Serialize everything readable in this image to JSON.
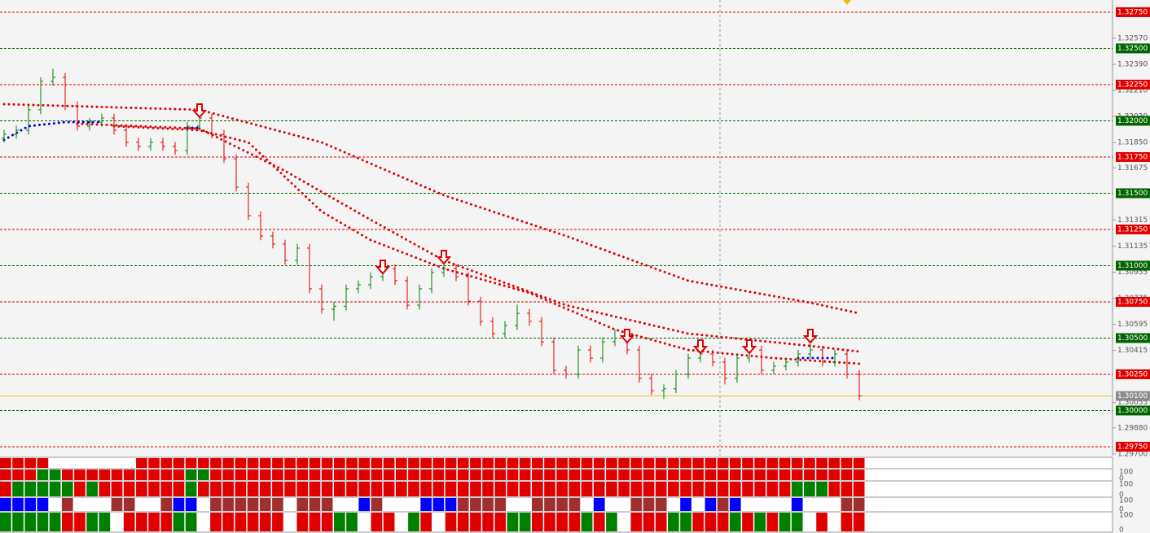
{
  "chart_data": {
    "type": "candlestick",
    "ylim": [
      1.29688,
      1.32834
    ],
    "up_color": "#008000",
    "down_color": "#e00000",
    "open": [
      1.3188,
      1.31907,
      1.31935,
      1.32076,
      1.32272,
      1.323,
      1.32104,
      1.31963,
      1.31991,
      1.32019,
      1.31935,
      1.31851,
      1.31823,
      1.31851,
      1.31823,
      1.31795,
      1.31963,
      1.32019,
      1.31907,
      1.31738,
      1.31542,
      1.31345,
      1.31205,
      1.31149,
      1.31036,
      1.31121,
      1.3084,
      1.30699,
      1.3072,
      1.3084,
      1.30868,
      1.30924,
      1.3098,
      1.30896,
      1.30727,
      1.3084,
      1.30952,
      1.3098,
      1.30924,
      1.30755,
      1.30615,
      1.30531,
      1.30587,
      1.30671,
      1.30615,
      1.30474,
      1.30278,
      1.3025,
      1.30418,
      1.30362,
      1.30474,
      1.305,
      1.30418,
      1.30222,
      1.30137,
      1.3015,
      1.3025,
      1.30362,
      1.3039,
      1.30334,
      1.30222,
      1.30362,
      1.30418,
      1.30278,
      1.30306,
      1.30334,
      1.3039,
      1.30418,
      1.30334,
      1.3039,
      1.3025
    ],
    "high": [
      1.31937,
      1.31965,
      1.32106,
      1.32302,
      1.3236,
      1.3233,
      1.32134,
      1.32021,
      1.32049,
      1.32049,
      1.31965,
      1.31881,
      1.31881,
      1.31881,
      1.31853,
      1.31993,
      1.32049,
      1.32049,
      1.31937,
      1.31768,
      1.31572,
      1.31375,
      1.31235,
      1.31179,
      1.31151,
      1.31151,
      1.3087,
      1.3075,
      1.3087,
      1.30898,
      1.30954,
      1.3101,
      1.3101,
      1.30926,
      1.3087,
      1.30982,
      1.3104,
      1.3101,
      1.30954,
      1.30785,
      1.30645,
      1.30617,
      1.30731,
      1.30701,
      1.30645,
      1.30504,
      1.30308,
      1.30448,
      1.30448,
      1.30504,
      1.3056,
      1.3053,
      1.30448,
      1.30252,
      1.3018,
      1.3028,
      1.30392,
      1.3045,
      1.3042,
      1.30364,
      1.30392,
      1.30448,
      1.30448,
      1.30336,
      1.30364,
      1.3042,
      1.3046,
      1.30448,
      1.3042,
      1.3042,
      1.3028
    ],
    "low": [
      1.3185,
      1.31877,
      1.31905,
      1.32046,
      1.32242,
      1.32074,
      1.31933,
      1.31933,
      1.31961,
      1.31905,
      1.31821,
      1.31793,
      1.31793,
      1.31793,
      1.31765,
      1.31765,
      1.31933,
      1.31877,
      1.31708,
      1.31512,
      1.31315,
      1.31175,
      1.31119,
      1.31006,
      1.31006,
      1.3081,
      1.30669,
      1.3062,
      1.3069,
      1.3081,
      1.30838,
      1.30894,
      1.30866,
      1.30697,
      1.30697,
      1.3081,
      1.30922,
      1.30894,
      1.30725,
      1.30585,
      1.30501,
      1.30501,
      1.30557,
      1.30585,
      1.30444,
      1.30248,
      1.3022,
      1.3022,
      1.30332,
      1.30332,
      1.30444,
      1.30388,
      1.30192,
      1.30107,
      1.3008,
      1.3012,
      1.3022,
      1.30332,
      1.30304,
      1.3018,
      1.30192,
      1.30332,
      1.30248,
      1.30248,
      1.30276,
      1.30304,
      1.3036,
      1.30304,
      1.30304,
      1.3022,
      1.3007
    ],
    "close": [
      1.31907,
      1.31935,
      1.32076,
      1.32272,
      1.323,
      1.32104,
      1.31963,
      1.31991,
      1.32019,
      1.31935,
      1.31851,
      1.31823,
      1.31851,
      1.31823,
      1.31795,
      1.31963,
      1.32019,
      1.31907,
      1.31738,
      1.31542,
      1.31345,
      1.31205,
      1.31149,
      1.31036,
      1.31121,
      1.3084,
      1.30699,
      1.3072,
      1.3084,
      1.30868,
      1.30924,
      1.3098,
      1.30896,
      1.30727,
      1.3084,
      1.30952,
      1.3098,
      1.30924,
      1.30755,
      1.30615,
      1.30531,
      1.30587,
      1.30671,
      1.30615,
      1.30474,
      1.30278,
      1.3025,
      1.30418,
      1.30362,
      1.30474,
      1.305,
      1.30418,
      1.30222,
      1.30137,
      1.3015,
      1.3025,
      1.30362,
      1.3039,
      1.30334,
      1.30222,
      1.30362,
      1.30418,
      1.30278,
      1.30306,
      1.30334,
      1.3039,
      1.30418,
      1.30334,
      1.3039,
      1.3025,
      1.301
    ],
    "series": [
      {
        "color": "#e00000",
        "x": [
          0,
          16,
          26,
          36,
          46,
          56,
          66,
          70
        ],
        "values": [
          1.32115,
          1.32076,
          1.31851,
          1.31486,
          1.31205,
          1.30896,
          1.30744,
          1.30671
        ]
      },
      {
        "color": "#e00000",
        "x": [
          6,
          16,
          23,
          30,
          36,
          46,
          56,
          66,
          70
        ],
        "values": [
          1.3198,
          1.31946,
          1.31654,
          1.31317,
          1.31036,
          1.30727,
          1.30531,
          1.30446,
          1.30407
        ]
      },
      {
        "color": "#e00000",
        "x": [
          9,
          16,
          20,
          26,
          30,
          36,
          43,
          50,
          56,
          63,
          70
        ],
        "values": [
          1.31963,
          1.31935,
          1.31851,
          1.31373,
          1.31177,
          1.3098,
          1.30812,
          1.30559,
          1.30418,
          1.30362,
          1.30323
        ]
      },
      {
        "color": "#0000e0",
        "x": [
          0,
          2,
          5,
          8,
          9,
          15,
          16,
          17,
          65,
          68
        ],
        "values": [
          1.31868,
          1.31963,
          1.31991,
          1.31991,
          null,
          1.31952,
          1.31952,
          null,
          1.30362,
          1.30362
        ]
      }
    ],
    "signals": {
      "color": "#e00000",
      "x": [
        16,
        31,
        36,
        51,
        57,
        61,
        66
      ],
      "values": [
        1.32115,
        1.31036,
        1.31104,
        1.30559,
        1.30486,
        1.30486,
        1.30559
      ]
    },
    "levels": [
      {
        "value": 1.3275,
        "label": "1.32750",
        "color": "#e00000"
      },
      {
        "value": 1.325,
        "label": "1.32500",
        "color": "#006400"
      },
      {
        "value": 1.3225,
        "label": "1.32250",
        "color": "#e00000"
      },
      {
        "value": 1.32,
        "label": "1.32000",
        "color": "#006400"
      },
      {
        "value": 1.3175,
        "label": "1.31750",
        "color": "#e00000"
      },
      {
        "value": 1.315,
        "label": "1.31500",
        "color": "#006400"
      },
      {
        "value": 1.3125,
        "label": "1.31250",
        "color": "#e00000"
      },
      {
        "value": 1.31,
        "label": "1.31000",
        "color": "#006400"
      },
      {
        "value": 1.3075,
        "label": "1.30750",
        "color": "#e00000"
      },
      {
        "value": 1.305,
        "label": "1.30500",
        "color": "#006400"
      },
      {
        "value": 1.3025,
        "label": "1.30250",
        "color": "#e00000"
      },
      {
        "value": 1.3,
        "label": "1.30000",
        "color": "#006400"
      },
      {
        "value": 1.2975,
        "label": "1.29750",
        "color": "#e00000"
      }
    ],
    "yticks": [
      {
        "value": 1.3257,
        "label": "1.32570"
      },
      {
        "value": 1.3239,
        "label": "1.32390"
      },
      {
        "value": 1.3221,
        "label": "1.32210"
      },
      {
        "value": 1.3203,
        "label": "1.32030"
      },
      {
        "value": 1.3185,
        "label": "1.31850"
      },
      {
        "value": 1.31675,
        "label": "1.31675"
      },
      {
        "value": 1.31315,
        "label": "1.31315"
      },
      {
        "value": 1.31135,
        "label": "1.31135"
      },
      {
        "value": 1.30955,
        "label": "1.30955"
      },
      {
        "value": 1.30775,
        "label": "1.30775"
      },
      {
        "value": 1.30595,
        "label": "1.30595"
      },
      {
        "value": 1.30415,
        "label": "1.30415"
      },
      {
        "value": 1.30055,
        "label": "1.30055"
      },
      {
        "value": 1.2988,
        "label": "1.29880"
      },
      {
        "value": 1.297,
        "label": "1.29700"
      }
    ],
    "last": {
      "value": 1.301,
      "label": "1.30100"
    },
    "panels": [
      {
        "up_color": "#008000",
        "down_color": "#e00000",
        "runs": [
          [
            -1,
            4
          ],
          [
            0,
            7
          ],
          [
            -1,
            59
          ]
        ]
      },
      {
        "up_color": "#008000",
        "down_color": "#e00000",
        "max": 100,
        "min": 0,
        "runs": [
          [
            -1,
            3
          ],
          [
            1,
            2
          ],
          [
            -1,
            10
          ],
          [
            1,
            2
          ],
          [
            -1,
            53
          ]
        ]
      },
      {
        "up_color": "#008000",
        "down_color": "#e00000",
        "max": 100,
        "min": 0,
        "runs": [
          [
            -1,
            1
          ],
          [
            1,
            5
          ],
          [
            -1,
            1
          ],
          [
            1,
            1
          ],
          [
            -1,
            7
          ],
          [
            1,
            1
          ],
          [
            -1,
            48
          ],
          [
            1,
            3
          ],
          [
            -1,
            3
          ]
        ]
      },
      {
        "up_color": "#0000ff",
        "down_color": "#a03030",
        "max": 100,
        "min": 0,
        "runs": [
          [
            1,
            4
          ],
          [
            0,
            1
          ],
          [
            -1,
            1
          ],
          [
            0,
            3
          ],
          [
            -1,
            2
          ],
          [
            0,
            2
          ],
          [
            -1,
            1
          ],
          [
            1,
            2
          ],
          [
            0,
            1
          ],
          [
            -1,
            6
          ],
          [
            0,
            1
          ],
          [
            -1,
            3
          ],
          [
            0,
            2
          ],
          [
            1,
            1
          ],
          [
            -1,
            1
          ],
          [
            0,
            3
          ],
          [
            1,
            3
          ],
          [
            -1,
            4
          ],
          [
            0,
            2
          ],
          [
            -1,
            4
          ],
          [
            0,
            1
          ],
          [
            1,
            1
          ],
          [
            0,
            2
          ],
          [
            -1,
            3
          ],
          [
            0,
            1
          ],
          [
            1,
            1
          ],
          [
            0,
            1
          ],
          [
            1,
            1
          ],
          [
            -1,
            1
          ],
          [
            1,
            1
          ],
          [
            0,
            4
          ],
          [
            1,
            1
          ],
          [
            0,
            3
          ],
          [
            -1,
            2
          ]
        ]
      },
      {
        "up_color": "#008000",
        "down_color": "#e00000",
        "max": 100,
        "min": 0,
        "runs": [
          [
            1,
            5
          ],
          [
            -1,
            2
          ],
          [
            1,
            2
          ],
          [
            0,
            1
          ],
          [
            -1,
            4
          ],
          [
            1,
            2
          ],
          [
            0,
            1
          ],
          [
            -1,
            6
          ],
          [
            0,
            1
          ],
          [
            -1,
            3
          ],
          [
            1,
            2
          ],
          [
            0,
            1
          ],
          [
            -1,
            2
          ],
          [
            0,
            1
          ],
          [
            1,
            1
          ],
          [
            -1,
            1
          ],
          [
            0,
            1
          ],
          [
            -1,
            5
          ],
          [
            1,
            2
          ],
          [
            -1,
            4
          ],
          [
            1,
            1
          ],
          [
            -1,
            1
          ],
          [
            1,
            1
          ],
          [
            0,
            1
          ],
          [
            -1,
            3
          ],
          [
            1,
            2
          ],
          [
            -1,
            3
          ],
          [
            1,
            1
          ],
          [
            -1,
            1
          ],
          [
            1,
            1
          ],
          [
            -1,
            1
          ],
          [
            1,
            2
          ],
          [
            0,
            1
          ],
          [
            -1,
            1
          ],
          [
            0,
            1
          ],
          [
            -1,
            2
          ]
        ]
      }
    ]
  }
}
